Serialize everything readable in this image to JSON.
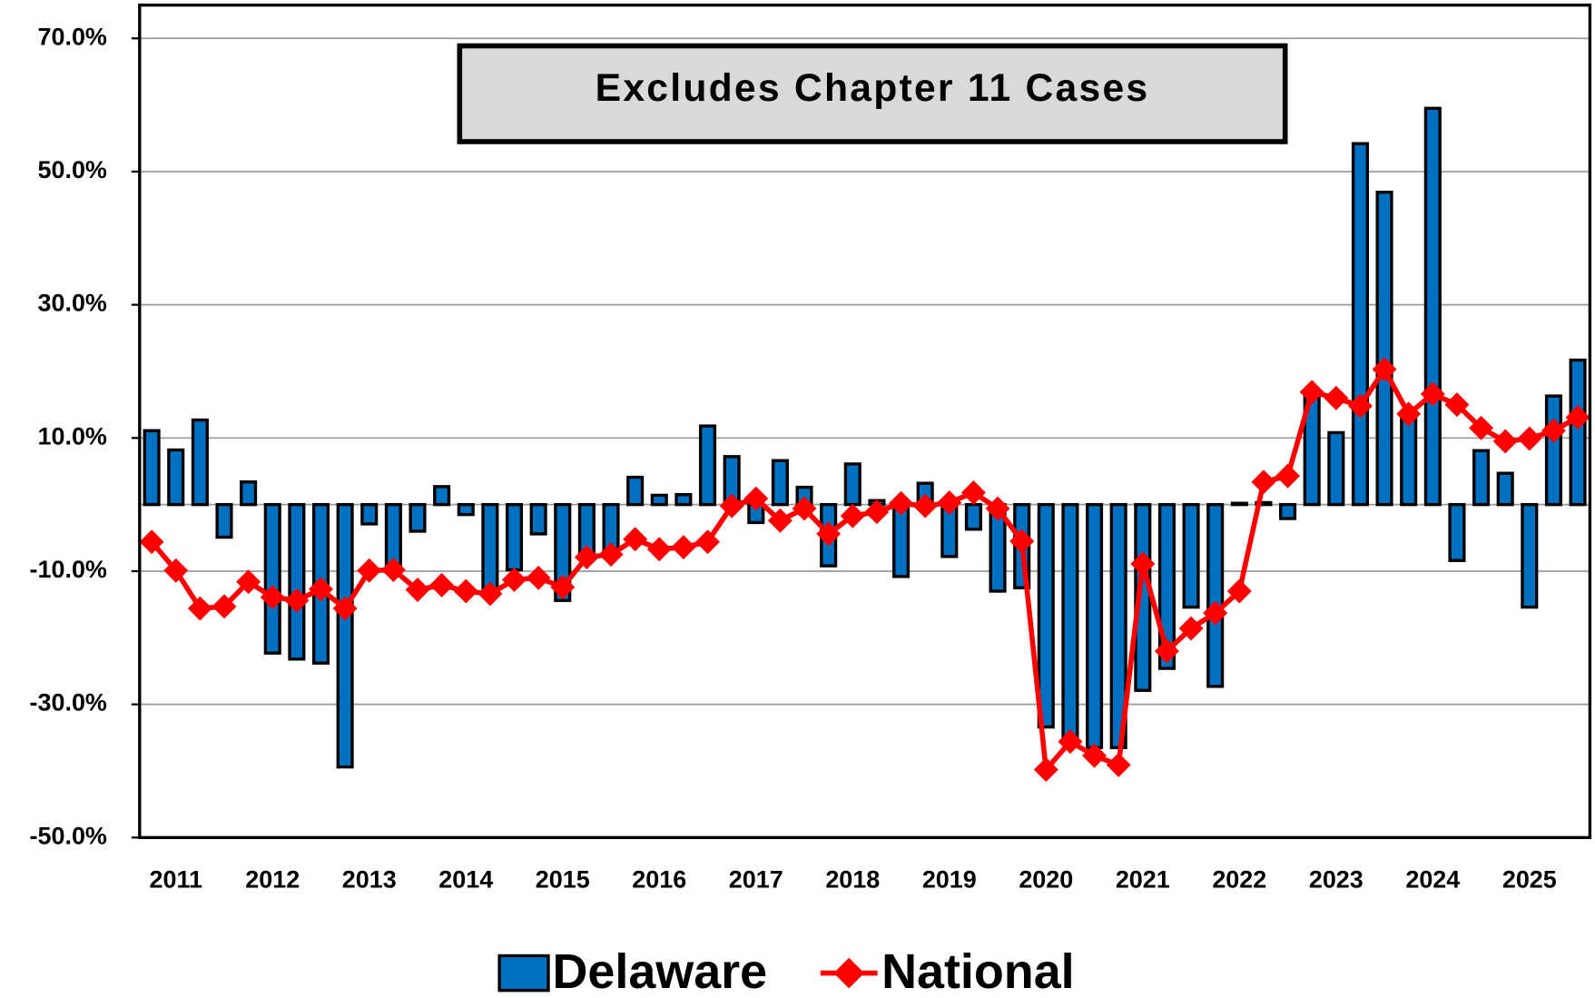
{
  "chart_data": {
    "type": "bar_line",
    "annotation": "Excludes Chapter 11 Cases",
    "categories": [
      null,
      "2011",
      null,
      null,
      null,
      "2012",
      null,
      null,
      null,
      "2013",
      null,
      null,
      null,
      "2014",
      null,
      null,
      null,
      "2015",
      null,
      null,
      null,
      "2016",
      null,
      null,
      null,
      "2017",
      null,
      null,
      null,
      "2018",
      null,
      null,
      null,
      "2019",
      null,
      null,
      null,
      "2020",
      null,
      null,
      null,
      "2021",
      null,
      null,
      null,
      "2022",
      null,
      null,
      null,
      "2023",
      null,
      null,
      null,
      "2024",
      null,
      null,
      null,
      "2025",
      null,
      null
    ],
    "series": [
      {
        "name": "Delaware",
        "type": "bar",
        "color": "#0070c0",
        "values": [
          11.1,
          8.2,
          12.7,
          -4.9,
          3.4,
          -22.3,
          -23.2,
          -23.8,
          -39.4,
          -2.9,
          -9.0,
          -4.0,
          2.7,
          -1.5,
          -13.0,
          -9.8,
          -4.4,
          -14.4,
          -7.5,
          -6.7,
          4.1,
          1.4,
          1.5,
          11.8,
          7.2,
          -2.7,
          6.6,
          2.6,
          -9.2,
          6.1,
          0.6,
          -10.8,
          3.2,
          -7.8,
          -3.7,
          -13.0,
          -12.5,
          -33.4,
          -35.0,
          -36.5,
          -36.5,
          -27.9,
          -24.6,
          -15.4,
          -27.3,
          0.2,
          0.3,
          -2.1,
          16.2,
          10.8,
          54.2,
          46.9,
          13.0,
          59.5,
          -8.4,
          8.1,
          4.7,
          -15.4,
          16.3,
          21.7
        ]
      },
      {
        "name": "National",
        "type": "line",
        "color": "#ff0000",
        "values": [
          -5.6,
          -9.9,
          -15.6,
          -15.3,
          -11.6,
          -13.9,
          -14.4,
          -12.7,
          -15.6,
          -9.9,
          -9.8,
          -12.8,
          -12.1,
          -13.0,
          -13.4,
          -11.3,
          -11.0,
          -12.4,
          -7.9,
          -7.5,
          -5.2,
          -6.7,
          -6.4,
          -5.6,
          -0.2,
          0.9,
          -2.4,
          -0.6,
          -4.4,
          -1.7,
          -1.1,
          0.2,
          -0.2,
          0.3,
          1.8,
          -0.6,
          -5.5,
          -39.8,
          -35.6,
          -37.7,
          -39.1,
          -8.9,
          -22.0,
          -18.6,
          -16.3,
          -13.0,
          3.4,
          4.3,
          16.9,
          16.0,
          14.8,
          20.3,
          13.6,
          16.6,
          15.0,
          11.5,
          9.5,
          9.9,
          11.1,
          13.1
        ]
      }
    ],
    "ylim": [
      -50,
      75
    ],
    "yticks": [
      {
        "value": -50,
        "label": "-50.0%"
      },
      {
        "value": -30,
        "label": "-30.0%"
      },
      {
        "value": -10,
        "label": "-10.0%"
      },
      {
        "value": 10,
        "label": "10.0%"
      },
      {
        "value": 30,
        "label": "30.0%"
      },
      {
        "value": 50,
        "label": "50.0%"
      },
      {
        "value": 70,
        "label": "70.0%"
      }
    ],
    "grid": true,
    "legend": "bottom"
  }
}
